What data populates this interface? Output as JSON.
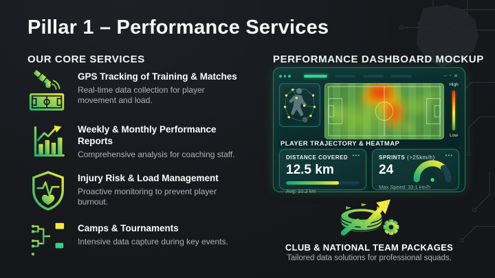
{
  "title": "Pillar 1 – Performance Services",
  "left": {
    "heading": "OUR CORE SERVICES",
    "services": [
      {
        "icon": "satellite-pitch-icon",
        "title": "GPS Tracking of Training & Matches",
        "desc": "Real-time data collection for player movement and load."
      },
      {
        "icon": "bar-chart-growth-icon",
        "title": "Weekly & Monthly Performance Reports",
        "desc": "Comprehensive analysis for coaching staff."
      },
      {
        "icon": "shield-heartbeat-icon",
        "title": "Injury Risk & Load Management",
        "desc": "Proactive monitoring to prevent player burnout."
      },
      {
        "icon": "tournament-bracket-flags-icon",
        "title": "Camps & Tournaments",
        "desc": "Intensive data capture during key events."
      }
    ]
  },
  "right": {
    "heading": "PERFORMANCE DASHBOARD MOCKUP",
    "dashboard": {
      "window_controls": {
        "minimize": "–",
        "maximize": "▫",
        "close": "✕"
      },
      "heatmap_caption": "PLAYER TRAJECTORY & HEATMAP",
      "scale": {
        "high": "High",
        "low": "Low"
      },
      "stats": [
        {
          "label": "DISTANCE COVERED",
          "value": "12.5 km",
          "sub": "Avg: 10.2 km",
          "menu": "•••",
          "progress_pct": 72
        },
        {
          "label": "SPRINTS",
          "label_suffix": "(>25km/h)",
          "value": "24",
          "sub": "Max Speed: 33.1 km/h",
          "menu": "•••"
        }
      ]
    },
    "package": {
      "title": "CLUB & NATIONAL TEAM PACKAGES",
      "desc": "Tailored data solutions for professional squads."
    }
  },
  "colors": {
    "accent_green": "#3ddc84",
    "accent_yellow": "#f2ea3a",
    "heat_red": "#ff2d12",
    "background": "#16181c",
    "panel_teal": "#0c2b2b"
  }
}
